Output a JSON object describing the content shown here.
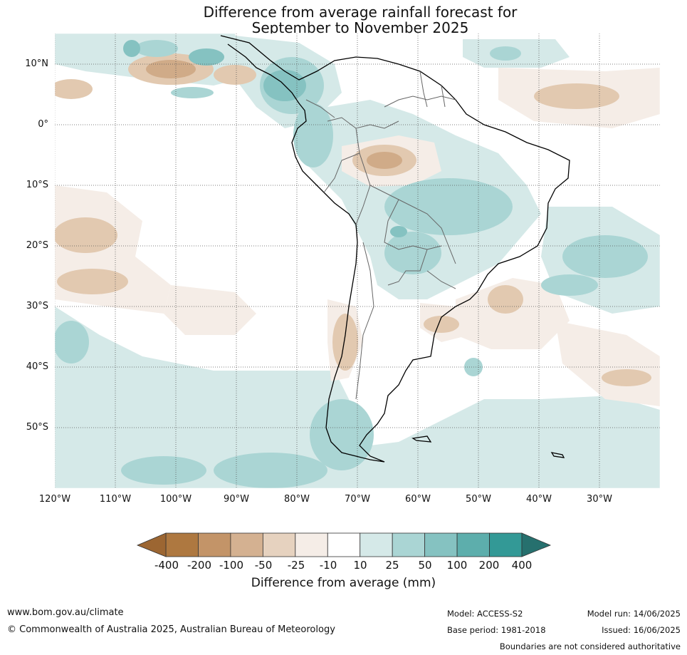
{
  "title": {
    "line1": "Difference from average rainfall forecast for",
    "line2": "September to November 2025"
  },
  "axes": {
    "lat_labels": [
      "10°N",
      "0°",
      "10°S",
      "20°S",
      "30°S",
      "40°S",
      "50°S"
    ],
    "lon_labels": [
      "120°W",
      "110°W",
      "100°W",
      "90°W",
      "80°W",
      "70°W",
      "60°W",
      "50°W",
      "40°W",
      "30°W"
    ],
    "lon_range": [
      -120,
      -20
    ],
    "lat_range": [
      -60,
      15
    ],
    "gridlines": true
  },
  "colorbar": {
    "title": "Difference from average (mm)",
    "tick_labels": [
      "-400",
      "-200",
      "-100",
      "-50",
      "-25",
      "-10",
      "10",
      "25",
      "50",
      "100",
      "200",
      "400"
    ],
    "colors": [
      "#9c6632",
      "#ae7840",
      "#c39468",
      "#d4b191",
      "#e6d2bf",
      "#f5ede7",
      "#ffffff",
      "#d5e9e8",
      "#aad5d4",
      "#85c2c1",
      "#5daeac",
      "#339996",
      "#26706e"
    ],
    "extend": "both"
  },
  "footer": {
    "website": "www.bom.gov.au/climate",
    "copyright": "© Commonwealth of Australia 2025, Australian Bureau of Meteorology",
    "model": "Model: ACCESS-S2",
    "base_period": "Base period: 1981-2018",
    "model_run": "Model run: 14/06/2025",
    "issued": "Issued: 16/06/2025",
    "disclaimer": "Boundaries are not considered authoritative"
  }
}
